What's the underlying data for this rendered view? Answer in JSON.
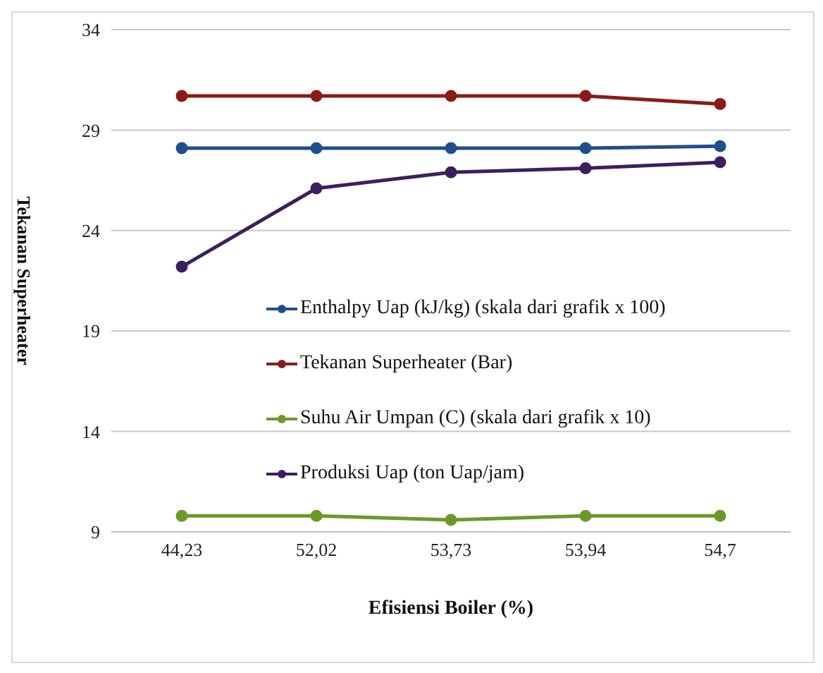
{
  "chart_data": {
    "type": "line",
    "xlabel": "Efisiensi Boiler (%)",
    "ylabel": "Tekanan Superheater",
    "categories": [
      "44,23",
      "52,02",
      "53,73",
      "53,94",
      "54,7"
    ],
    "series": [
      {
        "name": "Enthalpy Uap (kJ/kg) (skala dari grafik x 100)",
        "color": "#1f4e8c",
        "values": [
          28.1,
          28.1,
          28.1,
          28.1,
          28.2
        ]
      },
      {
        "name": "Tekanan Superheater (Bar)",
        "color": "#8b1a1a",
        "values": [
          30.7,
          30.7,
          30.7,
          30.7,
          30.3
        ]
      },
      {
        "name": "Suhu Air Umpan (C) (skala dari grafik x 10)",
        "color": "#6a9a2a",
        "values": [
          9.8,
          9.8,
          9.6,
          9.8,
          9.8
        ]
      },
      {
        "name": "Produksi Uap (ton Uap/jam)",
        "color": "#3d1f5c",
        "values": [
          22.2,
          26.1,
          26.9,
          27.1,
          27.4
        ]
      }
    ],
    "ylim": [
      9,
      34
    ],
    "yticks": [
      9,
      14,
      19,
      24,
      29,
      34
    ],
    "grid": "y",
    "legend": "center",
    "marker": "circle",
    "line_style": "solid"
  }
}
